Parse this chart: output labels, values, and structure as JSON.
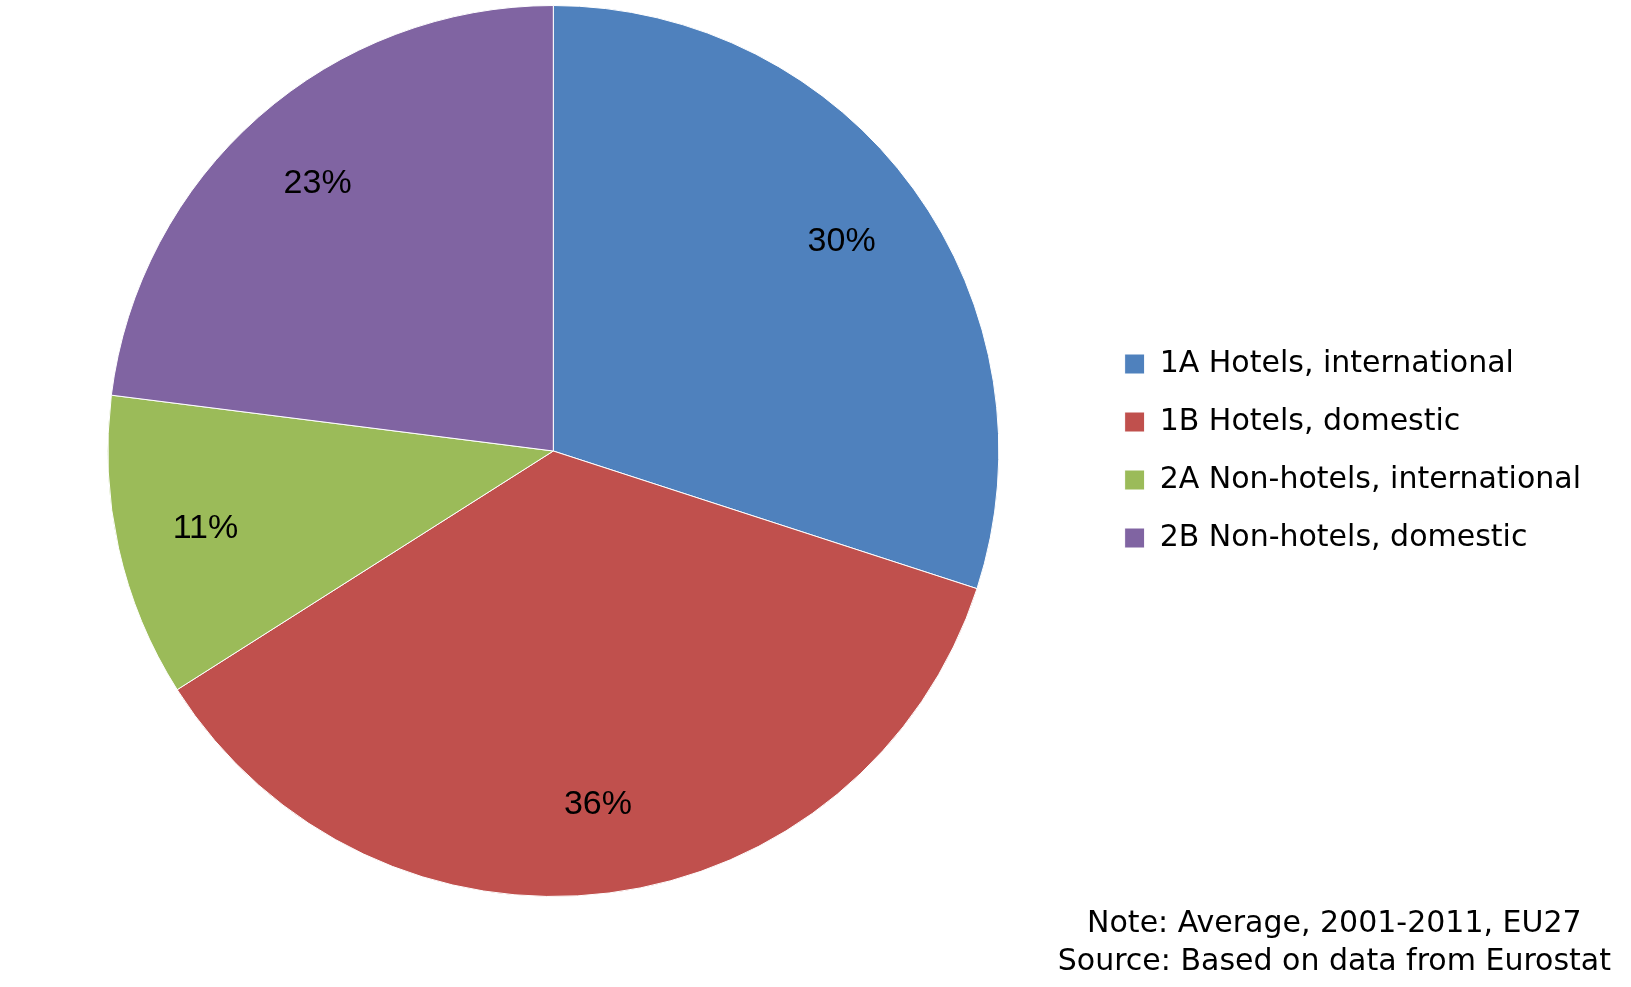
{
  "chart_data": {
    "type": "pie",
    "categories": [
      "1A Hotels, international",
      "1B Hotels, domestic",
      "2A Non-hotels, international",
      "2B Non-hotels, domestic"
    ],
    "values": [
      30,
      36,
      11,
      23
    ],
    "colors": [
      "#4f81bd",
      "#c0504d",
      "#9bbb59",
      "#8064a2"
    ],
    "value_labels": [
      "30%",
      "36%",
      "11%",
      "23%"
    ],
    "legend": "right",
    "annotations": [
      "Note: Average, 2001-2011, EU27",
      "Source: Based on data from Eurostat"
    ]
  }
}
